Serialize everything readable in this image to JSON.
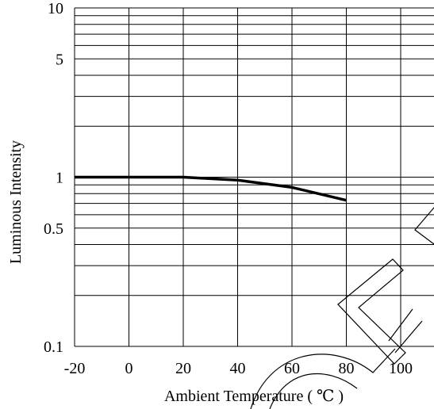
{
  "chart_data": {
    "type": "line",
    "title": "",
    "xlabel": "Ambient Temperature ( ℃ )",
    "ylabel": "Luminous Intensity",
    "xlim": [
      -20,
      110
    ],
    "ylim": [
      0.1,
      11
    ],
    "yscale": "log",
    "grid": true,
    "x_ticks": [
      -20,
      0,
      20,
      40,
      60,
      80,
      100
    ],
    "x_tick_labels": [
      "-20",
      "0",
      "20",
      "40",
      "60",
      "80",
      "100"
    ],
    "y_ticks": [
      0.1,
      0.5,
      1,
      5,
      10
    ],
    "y_tick_labels": [
      "0.1",
      "0.5",
      "1",
      "5",
      "10"
    ],
    "series": [
      {
        "x": [
          -20,
          0,
          20,
          40,
          60,
          80
        ],
        "y": [
          1.0,
          1.0,
          1.0,
          0.96,
          0.87,
          0.73
        ]
      }
    ],
    "colors": {
      "line": "#000000",
      "grid": "#000000",
      "watermark": "#000000"
    }
  }
}
